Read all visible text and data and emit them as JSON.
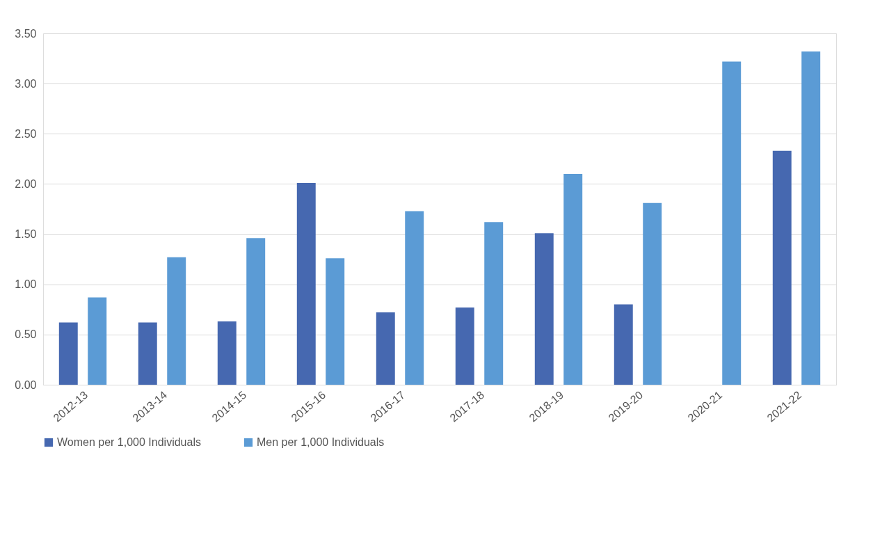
{
  "chart_data": {
    "type": "bar",
    "categories": [
      "2012-13",
      "2013-14",
      "2014-15",
      "2015-16",
      "2016-17",
      "2017-18",
      "2018-19",
      "2019-20",
      "2020-21",
      "2021-22"
    ],
    "series": [
      {
        "name": "Women per 1,000 Individuals",
        "color": "#4668b0",
        "values": [
          0.62,
          0.62,
          0.63,
          2.01,
          0.72,
          0.77,
          1.51,
          0.8,
          null,
          2.33
        ]
      },
      {
        "name": "Men per 1,000 Individuals",
        "color": "#5b9bd5",
        "values": [
          0.87,
          1.27,
          1.46,
          1.26,
          1.73,
          1.62,
          2.1,
          1.81,
          3.22,
          3.32
        ]
      }
    ],
    "ylim": [
      0,
      3.5
    ],
    "yticks": [
      {
        "value": 0,
        "label": "0.00"
      },
      {
        "value": 0.5,
        "label": "0.50"
      },
      {
        "value": 1,
        "label": "1.00"
      },
      {
        "value": 1.5,
        "label": "1.50"
      },
      {
        "value": 2,
        "label": "2.00"
      },
      {
        "value": 2.5,
        "label": "2.50"
      },
      {
        "value": 3,
        "label": "3.00"
      },
      {
        "value": 3.5,
        "label": "3.50"
      }
    ],
    "grid": "y",
    "legend": "bottom"
  }
}
